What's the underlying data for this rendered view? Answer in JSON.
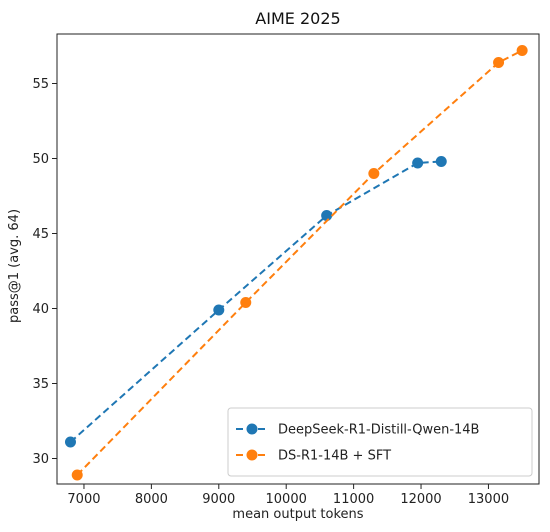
{
  "chart_data": {
    "type": "line",
    "title": "AIME 2025",
    "xlabel": "mean output tokens",
    "ylabel": "pass@1 (avg. 64)",
    "xlim": [
      6600,
      13750
    ],
    "ylim": [
      28.3,
      58.3
    ],
    "xticks": [
      7000,
      8000,
      9000,
      10000,
      11000,
      12000,
      13000
    ],
    "yticks": [
      30,
      35,
      40,
      45,
      50,
      55
    ],
    "grid": false,
    "legend_position": "bottom-right",
    "series": [
      {
        "name": "DeepSeek-R1-Distill-Qwen-14B",
        "color": "#1f77b4",
        "line_style": "dashed",
        "marker": "circle",
        "points": [
          {
            "x": 6800,
            "y": 31.1
          },
          {
            "x": 9000,
            "y": 39.9
          },
          {
            "x": 10600,
            "y": 46.2
          },
          {
            "x": 11950,
            "y": 49.7
          },
          {
            "x": 12300,
            "y": 49.8
          }
        ]
      },
      {
        "name": "DS-R1-14B + SFT",
        "color": "#ff7f0e",
        "line_style": "dashed",
        "marker": "circle",
        "points": [
          {
            "x": 6900,
            "y": 28.9
          },
          {
            "x": 9400,
            "y": 40.4
          },
          {
            "x": 11300,
            "y": 49.0
          },
          {
            "x": 13150,
            "y": 56.4
          },
          {
            "x": 13500,
            "y": 57.2
          }
        ]
      }
    ]
  }
}
